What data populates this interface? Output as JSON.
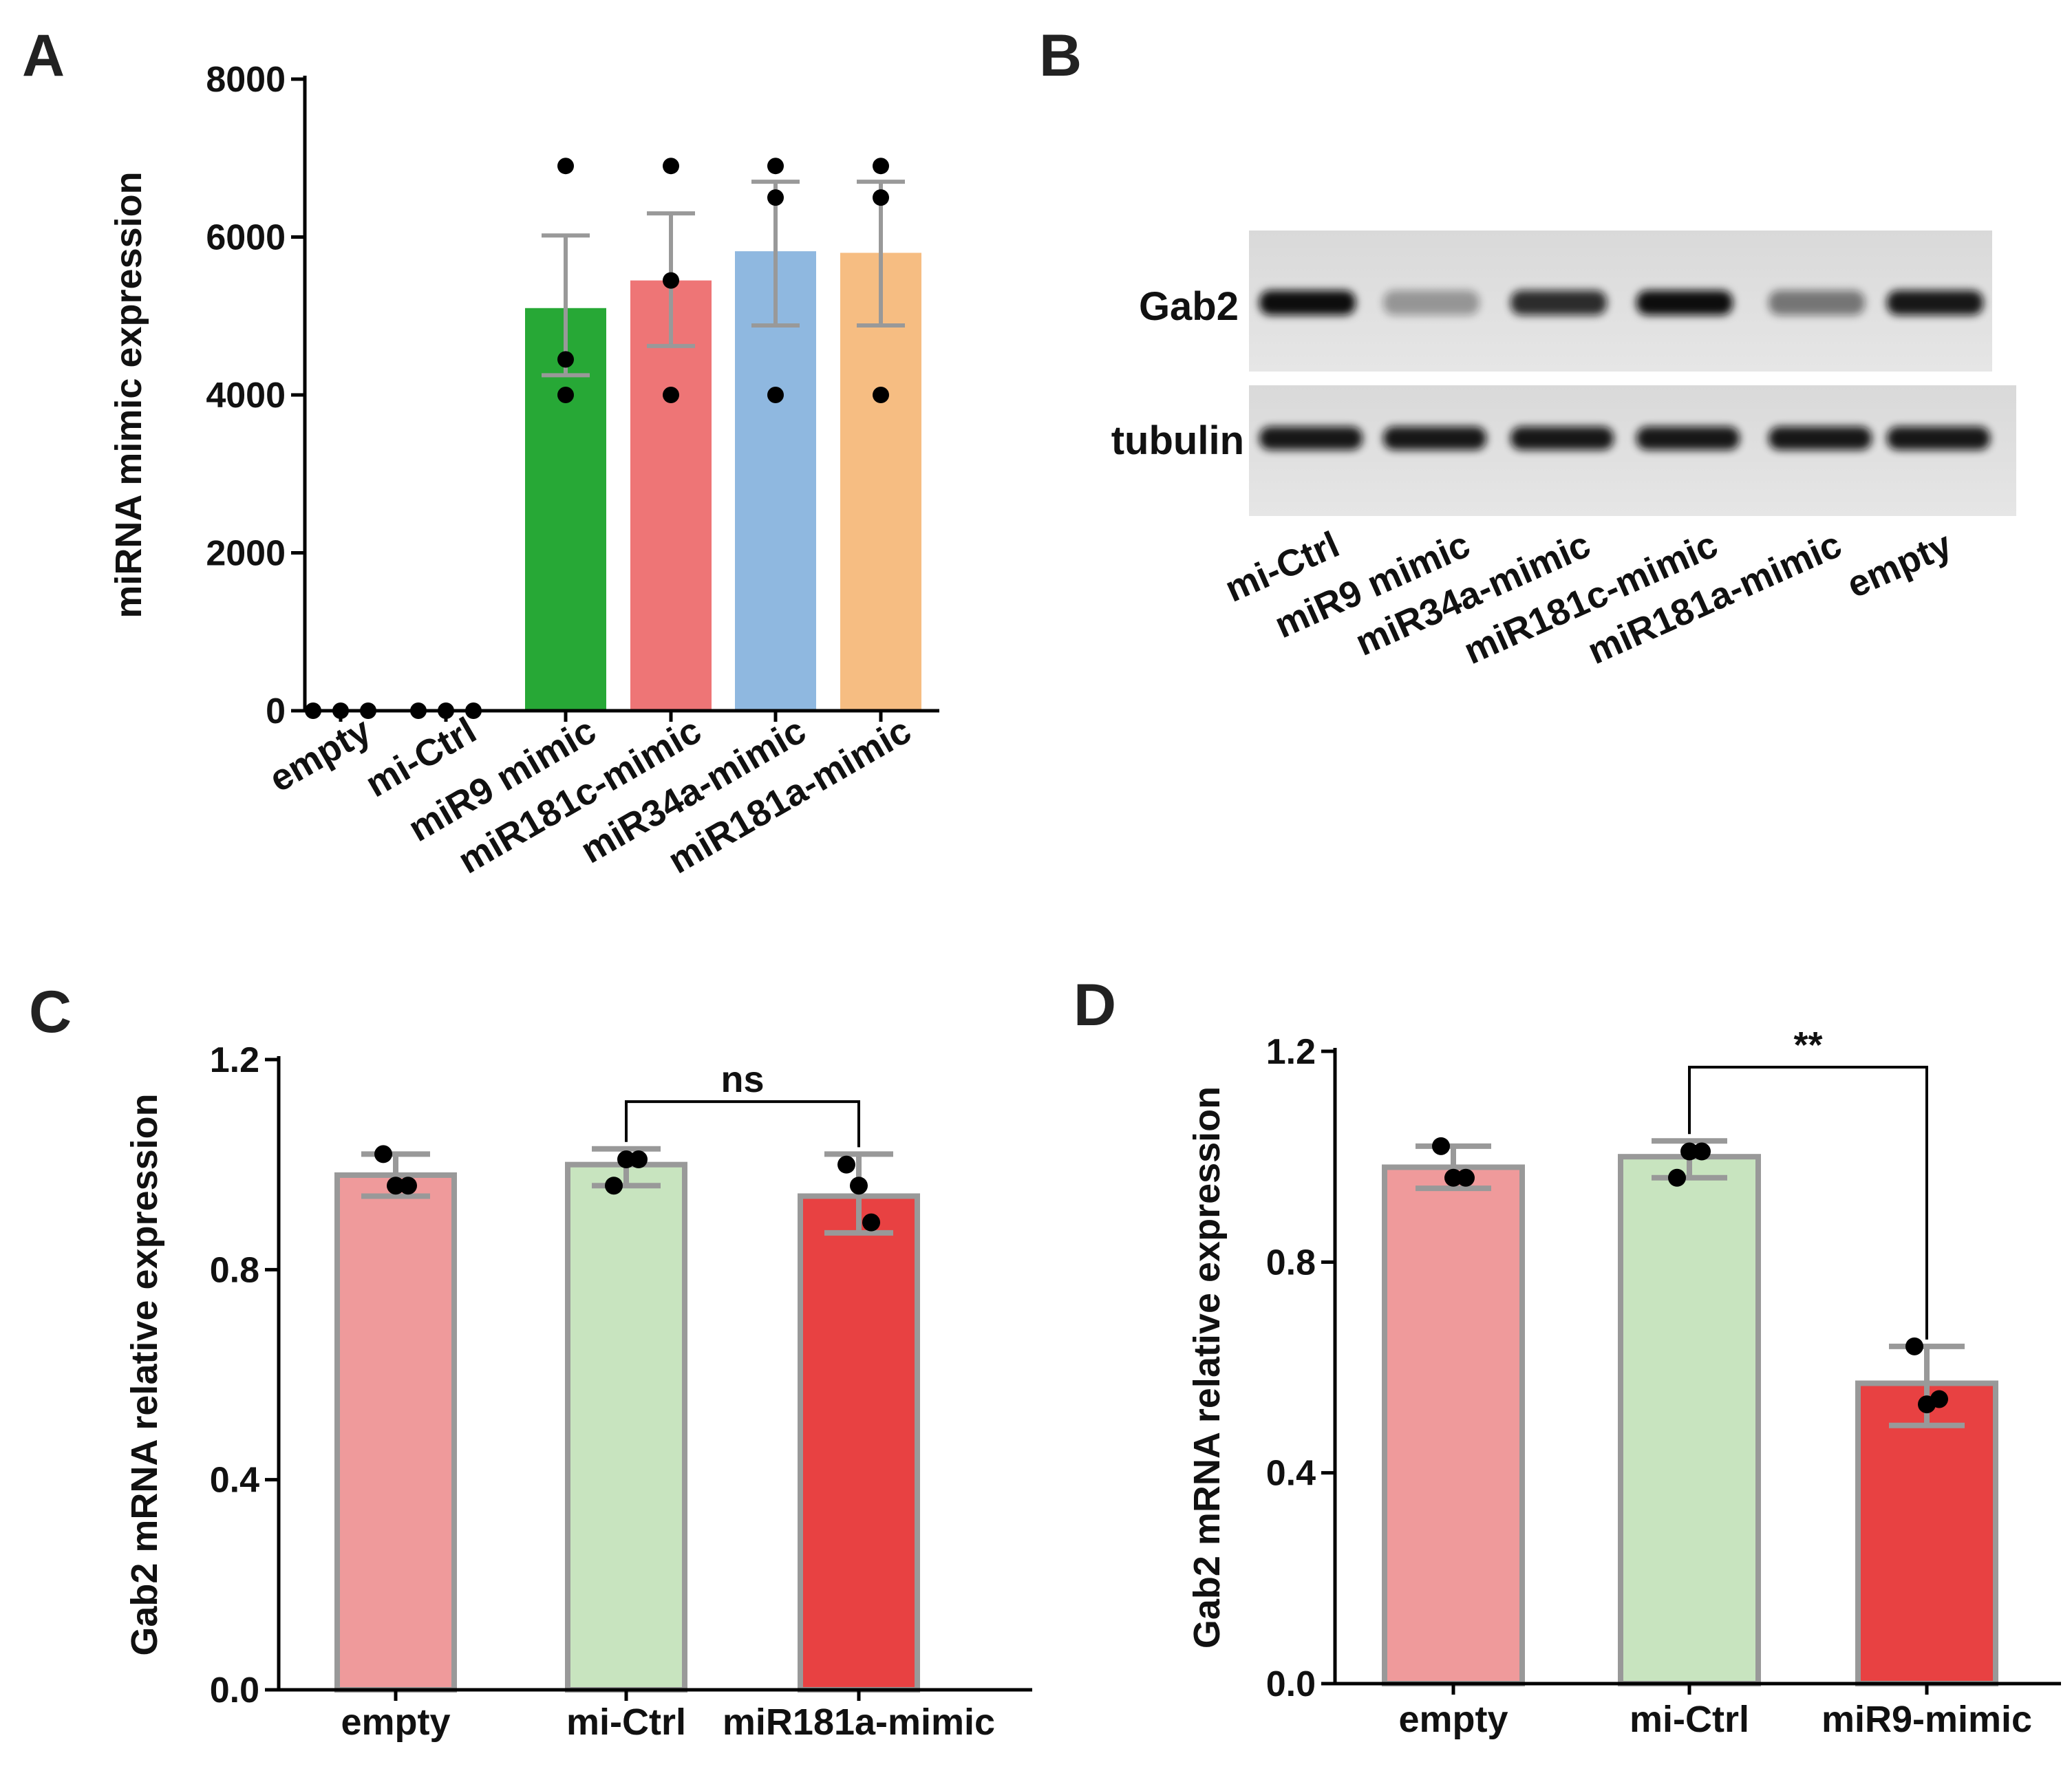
{
  "panels": {
    "A": {
      "letter": "A"
    },
    "B": {
      "letter": "B",
      "band_labels": [
        "Gab2",
        "tubulin"
      ],
      "lanes": [
        "mi-Ctrl",
        "miR9 mimic",
        "miR34a-mimic",
        "miR181c-mimic",
        "miR181a-mimic",
        "empty"
      ]
    },
    "C": {
      "letter": "C"
    },
    "D": {
      "letter": "D"
    }
  },
  "colors": {
    "green": "#27a836",
    "salmon": "#ee7576",
    "blue": "#8fb8e0",
    "orange": "#f6bd82",
    "pink": "#ef9a9b",
    "lightgreen": "#c8e4bf",
    "red": "#e84142",
    "errbar": "#999999"
  },
  "chart_data": [
    {
      "id": "A",
      "type": "bar",
      "title": "",
      "xlabel": "",
      "ylabel": "miRNA mimic expression",
      "ylim": [
        0,
        8000
      ],
      "yticks": [
        "0",
        "2000",
        "4000",
        "6000",
        "8000"
      ],
      "categories": [
        "empty",
        "mi-Ctrl",
        "miR9 mimic",
        "miR181c-mimic",
        "miR34a-mimic",
        "miR181a-mimic"
      ],
      "values": [
        0,
        0,
        5100,
        5450,
        5820,
        5800
      ],
      "errors": [
        [
          0,
          0
        ],
        [
          0,
          0
        ],
        [
          4250,
          6020
        ],
        [
          4620,
          6300
        ],
        [
          4880,
          6700
        ],
        [
          4880,
          6700
        ]
      ],
      "points": [
        [
          0,
          0,
          0
        ],
        [
          0,
          0,
          0
        ],
        [
          6900,
          4450,
          4000
        ],
        [
          6900,
          5450,
          4000
        ],
        [
          6900,
          6500,
          4000
        ],
        [
          6900,
          6500,
          4000
        ]
      ],
      "colors": [
        "green",
        "green",
        "green",
        "salmon",
        "blue",
        "orange"
      ]
    },
    {
      "id": "C",
      "type": "bar",
      "title": "",
      "xlabel": "",
      "ylabel": "Gab2 mRNA relative expression",
      "ylim": [
        0,
        1.2
      ],
      "yticks": [
        "0.0",
        "0.4",
        "0.8",
        "1.2"
      ],
      "categories": [
        "empty",
        "mi-Ctrl",
        "miR181a-mimic"
      ],
      "values": [
        0.98,
        1.0,
        0.94
      ],
      "errors": [
        [
          0.94,
          1.02
        ],
        [
          0.96,
          1.03
        ],
        [
          0.87,
          1.02
        ]
      ],
      "points": [
        [
          1.02,
          0.96,
          0.96
        ],
        [
          0.96,
          1.01,
          1.01
        ],
        [
          1.0,
          0.96,
          0.89
        ]
      ],
      "colors": [
        "pink",
        "lightgreen",
        "red"
      ],
      "significance": {
        "from": 1,
        "to": 2,
        "level": 1.12,
        "label": "ns"
      }
    },
    {
      "id": "D",
      "type": "bar",
      "title": "",
      "xlabel": "",
      "ylabel": "Gab2 mRNA relative expression",
      "ylim": [
        0,
        1.2
      ],
      "yticks": [
        "0.0",
        "0.4",
        "0.8",
        "1.2"
      ],
      "categories": [
        "empty",
        "mi-Ctrl",
        "miR9-mimic"
      ],
      "values": [
        0.98,
        1.0,
        0.57
      ],
      "errors": [
        [
          0.94,
          1.02
        ],
        [
          0.96,
          1.03
        ],
        [
          0.49,
          0.64
        ]
      ],
      "points": [
        [
          1.02,
          0.96,
          0.96
        ],
        [
          0.96,
          1.01,
          1.01
        ],
        [
          0.64,
          0.53,
          0.54
        ]
      ],
      "colors": [
        "pink",
        "lightgreen",
        "red"
      ],
      "significance": {
        "from": 1,
        "to": 2,
        "level": 1.17,
        "label": "**"
      }
    }
  ]
}
